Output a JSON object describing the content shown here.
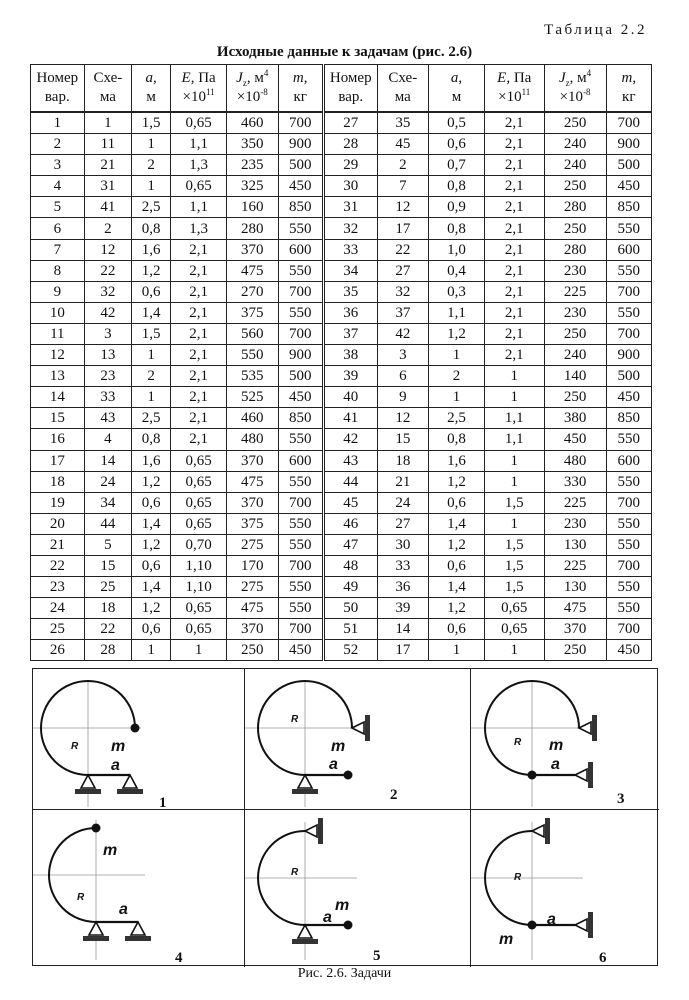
{
  "table_number": "Таблица 2.2",
  "table_title": "Исходные данные к задачам (рис. 2.6)",
  "header": [
    {
      "top_i": "",
      "top": "Номер",
      "bottom": "вар."
    },
    {
      "top_i": "",
      "top": "Схе-",
      "bottom": "ма"
    },
    {
      "top_i": "a",
      "top": ",",
      "bottom": "м"
    },
    {
      "top_i": "E",
      "top": ", Па",
      "bottom": "×10",
      "bottom_sup": "11"
    },
    {
      "top_i": "J",
      "top_sub": "z",
      "top": ", м",
      "top_sup": "4",
      "bottom": "×10",
      "bottom_sup": "-8"
    },
    {
      "top_i": "m",
      "top": ",",
      "bottom": "кг"
    }
  ],
  "rows": [
    [
      "1",
      "1",
      "1,5",
      "0,65",
      "460",
      "700",
      "27",
      "35",
      "0,5",
      "2,1",
      "250",
      "700"
    ],
    [
      "2",
      "11",
      "1",
      "1,1",
      "350",
      "900",
      "28",
      "45",
      "0,6",
      "2,1",
      "240",
      "900"
    ],
    [
      "3",
      "21",
      "2",
      "1,3",
      "235",
      "500",
      "29",
      "2",
      "0,7",
      "2,1",
      "240",
      "500"
    ],
    [
      "4",
      "31",
      "1",
      "0,65",
      "325",
      "450",
      "30",
      "7",
      "0,8",
      "2,1",
      "250",
      "450"
    ],
    [
      "5",
      "41",
      "2,5",
      "1,1",
      "160",
      "850",
      "31",
      "12",
      "0,9",
      "2,1",
      "280",
      "850"
    ],
    [
      "6",
      "2",
      "0,8",
      "1,3",
      "280",
      "550",
      "32",
      "17",
      "0,8",
      "2,1",
      "250",
      "550"
    ],
    [
      "7",
      "12",
      "1,6",
      "2,1",
      "370",
      "600",
      "33",
      "22",
      "1,0",
      "2,1",
      "280",
      "600"
    ],
    [
      "8",
      "22",
      "1,2",
      "2,1",
      "475",
      "550",
      "34",
      "27",
      "0,4",
      "2,1",
      "230",
      "550"
    ],
    [
      "9",
      "32",
      "0,6",
      "2,1",
      "270",
      "700",
      "35",
      "32",
      "0,3",
      "2,1",
      "225",
      "700"
    ],
    [
      "10",
      "42",
      "1,4",
      "2,1",
      "375",
      "550",
      "36",
      "37",
      "1,1",
      "2,1",
      "230",
      "550"
    ],
    [
      "11",
      "3",
      "1,5",
      "2,1",
      "560",
      "700",
      "37",
      "42",
      "1,2",
      "2,1",
      "250",
      "700"
    ],
    [
      "12",
      "13",
      "1",
      "2,1",
      "550",
      "900",
      "38",
      "3",
      "1",
      "2,1",
      "240",
      "900"
    ],
    [
      "13",
      "23",
      "2",
      "2,1",
      "535",
      "500",
      "39",
      "6",
      "2",
      "1",
      "140",
      "500"
    ],
    [
      "14",
      "33",
      "1",
      "2,1",
      "525",
      "450",
      "40",
      "9",
      "1",
      "1",
      "250",
      "450"
    ],
    [
      "15",
      "43",
      "2,5",
      "2,1",
      "460",
      "850",
      "41",
      "12",
      "2,5",
      "1,1",
      "380",
      "850"
    ],
    [
      "16",
      "4",
      "0,8",
      "2,1",
      "480",
      "550",
      "42",
      "15",
      "0,8",
      "1,1",
      "450",
      "550"
    ],
    [
      "17",
      "14",
      "1,6",
      "0,65",
      "370",
      "600",
      "43",
      "18",
      "1,6",
      "1",
      "480",
      "600"
    ],
    [
      "18",
      "24",
      "1,2",
      "0,65",
      "475",
      "550",
      "44",
      "21",
      "1,2",
      "1",
      "330",
      "550"
    ],
    [
      "19",
      "34",
      "0,6",
      "0,65",
      "370",
      "700",
      "45",
      "24",
      "0,6",
      "1,5",
      "225",
      "700"
    ],
    [
      "20",
      "44",
      "1,4",
      "0,65",
      "375",
      "550",
      "46",
      "27",
      "1,4",
      "1",
      "230",
      "550"
    ],
    [
      "21",
      "5",
      "1,2",
      "0,70",
      "275",
      "550",
      "47",
      "30",
      "1,2",
      "1,5",
      "130",
      "550"
    ],
    [
      "22",
      "15",
      "0,6",
      "1,10",
      "170",
      "700",
      "48",
      "33",
      "0,6",
      "1,5",
      "225",
      "700"
    ],
    [
      "23",
      "25",
      "1,4",
      "1,10",
      "275",
      "550",
      "49",
      "36",
      "1,4",
      "1,5",
      "130",
      "550"
    ],
    [
      "24",
      "18",
      "1,2",
      "0,65",
      "475",
      "550",
      "50",
      "39",
      "1,2",
      "0,65",
      "475",
      "550"
    ],
    [
      "25",
      "22",
      "0,6",
      "0,65",
      "370",
      "700",
      "51",
      "14",
      "0,6",
      "0,65",
      "370",
      "700"
    ],
    [
      "26",
      "28",
      "1",
      "1",
      "250",
      "450",
      "52",
      "17",
      "1",
      "1",
      "250",
      "450"
    ]
  ],
  "figures": [
    {
      "number": "1",
      "R": "R",
      "m": "m",
      "a": "a"
    },
    {
      "number": "2",
      "R": "R",
      "m": "m",
      "a": "a"
    },
    {
      "number": "3",
      "R": "R",
      "m": "m",
      "a": "a"
    },
    {
      "number": "4",
      "R": "R",
      "m": "m",
      "a": "a"
    },
    {
      "number": "5",
      "R": "R",
      "m": "m",
      "a": "a"
    },
    {
      "number": "6",
      "R": "R",
      "m": "m",
      "a": "a"
    }
  ],
  "caption": "Рис. 2.6. Задачи"
}
